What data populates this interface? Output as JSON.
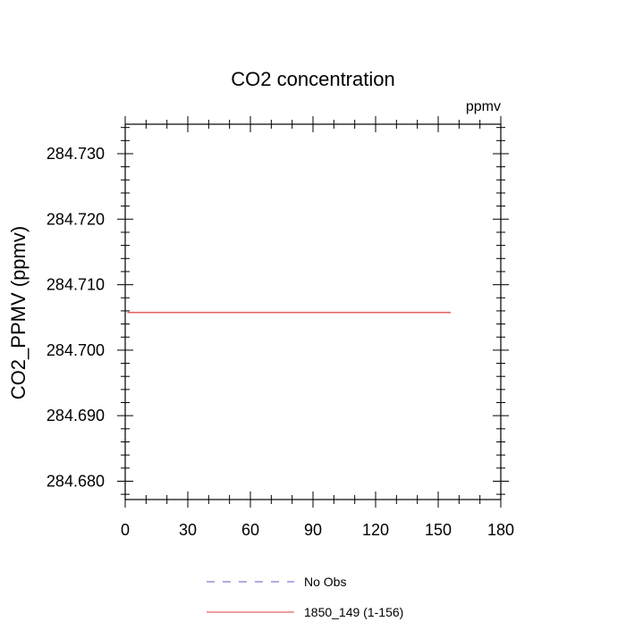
{
  "chart_data": {
    "type": "line",
    "title": "CO2 concentration",
    "units_label": "ppmv",
    "ylabel": "CO2_PPMV  (ppmv)",
    "xlabel": "",
    "xlim": [
      0,
      180
    ],
    "ylim": [
      284.6772,
      284.7345
    ],
    "x_ticks": [
      0,
      30,
      60,
      90,
      120,
      150,
      180
    ],
    "x_tick_labels": [
      "0",
      "30",
      "60",
      "90",
      "120",
      "150",
      "180"
    ],
    "x_minor_step": 10,
    "y_ticks": [
      284.68,
      284.69,
      284.7,
      284.71,
      284.72,
      284.73
    ],
    "y_tick_labels": [
      "284.680",
      "284.690",
      "284.700",
      "284.710",
      "284.720",
      "284.730"
    ],
    "y_minor_step": 0.002,
    "grid": false,
    "legend_position": "bottom-center",
    "series": [
      {
        "name": "No Obs",
        "color": "#7b7bd6",
        "dashed": true,
        "x": [],
        "y": []
      },
      {
        "name": "1850_149 (1-156)",
        "color": "#e06666",
        "dashed": false,
        "x": [
          1,
          156
        ],
        "y": [
          284.70575,
          284.70575
        ]
      }
    ]
  }
}
